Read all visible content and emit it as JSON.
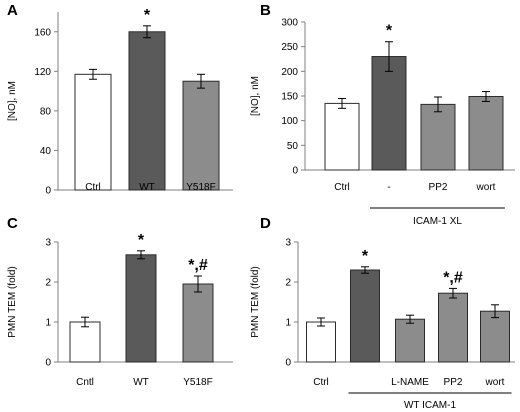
{
  "colors": {
    "white": "#ffffff",
    "dark": "#5a5a5a",
    "mid": "#8c8c8c",
    "axis": "#7f7f7f",
    "edge": "#2b2b2b"
  },
  "chart_data": [
    {
      "panel": "A",
      "type": "bar",
      "ylabel": "[NO], nM",
      "ylim": [
        0,
        180
      ],
      "yticks": [
        0,
        40,
        80,
        120,
        160
      ],
      "categories": [
        "Ctrl",
        "WT",
        "Y518F"
      ],
      "values": [
        117,
        160,
        110
      ],
      "errors": [
        5,
        6,
        7
      ],
      "fills": [
        "white",
        "dark",
        "mid"
      ],
      "annotations": [
        "",
        "*",
        ""
      ],
      "group_label": ""
    },
    {
      "panel": "B",
      "type": "bar",
      "ylabel": "[NO], nM",
      "ylim": [
        0,
        300
      ],
      "yticks": [
        0,
        50,
        100,
        150,
        200,
        250,
        300
      ],
      "categories": [
        "Ctrl",
        "-",
        "PP2",
        "wort"
      ],
      "values": [
        135,
        230,
        133,
        149
      ],
      "errors": [
        10,
        30,
        15,
        10
      ],
      "fills": [
        "white",
        "dark",
        "mid",
        "mid"
      ],
      "annotations": [
        "",
        "*",
        "",
        ""
      ],
      "group_label": "ICAM-1 XL",
      "group_span": [
        1,
        3
      ]
    },
    {
      "panel": "C",
      "type": "bar",
      "ylabel": "PMN TEM  (fold)",
      "ylim": [
        0,
        3
      ],
      "yticks": [
        0,
        1,
        2,
        3
      ],
      "categories": [
        "Cntl",
        "WT",
        "Y518F"
      ],
      "values": [
        1.0,
        2.68,
        1.95
      ],
      "errors": [
        0.12,
        0.1,
        0.2
      ],
      "fills": [
        "white",
        "dark",
        "mid"
      ],
      "annotations": [
        "",
        "*",
        "*,#"
      ],
      "group_label": ""
    },
    {
      "panel": "D",
      "type": "bar",
      "ylabel": "PMN TEM  (fold)",
      "ylim": [
        0,
        3
      ],
      "yticks": [
        0,
        1,
        2,
        3
      ],
      "categories": [
        "Ctrl",
        "",
        "L-NAME",
        "PP2",
        "wort"
      ],
      "values": [
        1.0,
        2.3,
        1.07,
        1.72,
        1.27
      ],
      "errors": [
        0.1,
        0.08,
        0.1,
        0.12,
        0.16
      ],
      "fills": [
        "white",
        "dark",
        "mid",
        "mid",
        "mid"
      ],
      "annotations": [
        "",
        "*",
        "",
        "*,#",
        ""
      ],
      "group_label": "WT ICAM-1",
      "group_span": [
        1,
        4
      ]
    }
  ]
}
